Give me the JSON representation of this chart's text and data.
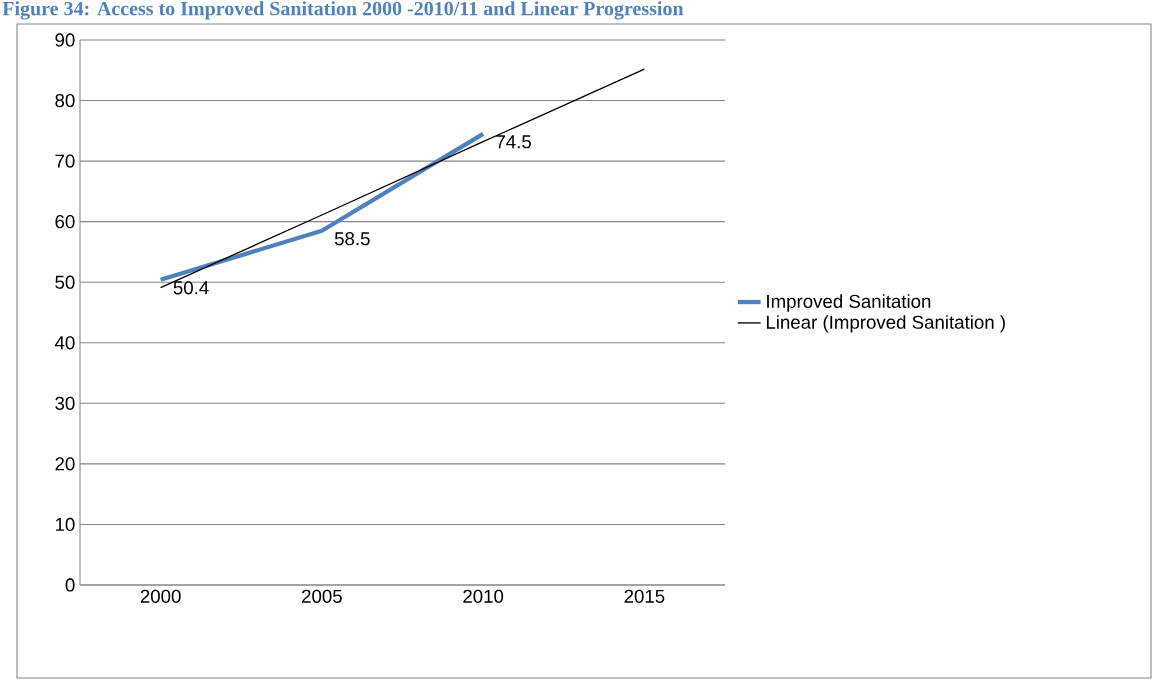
{
  "chart_data": {
    "type": "line",
    "title": "Figure 34: Access to Improved Sanitation 2000 -2010/11 and Linear Progression",
    "categories": [
      "2000",
      "2005",
      "2010",
      "2015"
    ],
    "series": [
      {
        "name": "Improved Sanitation",
        "color": "#4f81bd",
        "values": [
          50.4,
          58.5,
          74.5,
          null
        ],
        "value_labels": [
          "50.4",
          "58.5",
          "74.5",
          null
        ]
      },
      {
        "name": "Linear (Improved Sanitation )",
        "color": "#000000",
        "values": [
          49.1,
          61.1,
          73.2,
          85.2
        ]
      }
    ],
    "ylim": [
      0,
      90
    ],
    "yticks": [
      0,
      10,
      20,
      30,
      40,
      50,
      60,
      70,
      80,
      90
    ],
    "grid": "y",
    "legend": "right",
    "marker": "none",
    "line_style": "solid"
  }
}
